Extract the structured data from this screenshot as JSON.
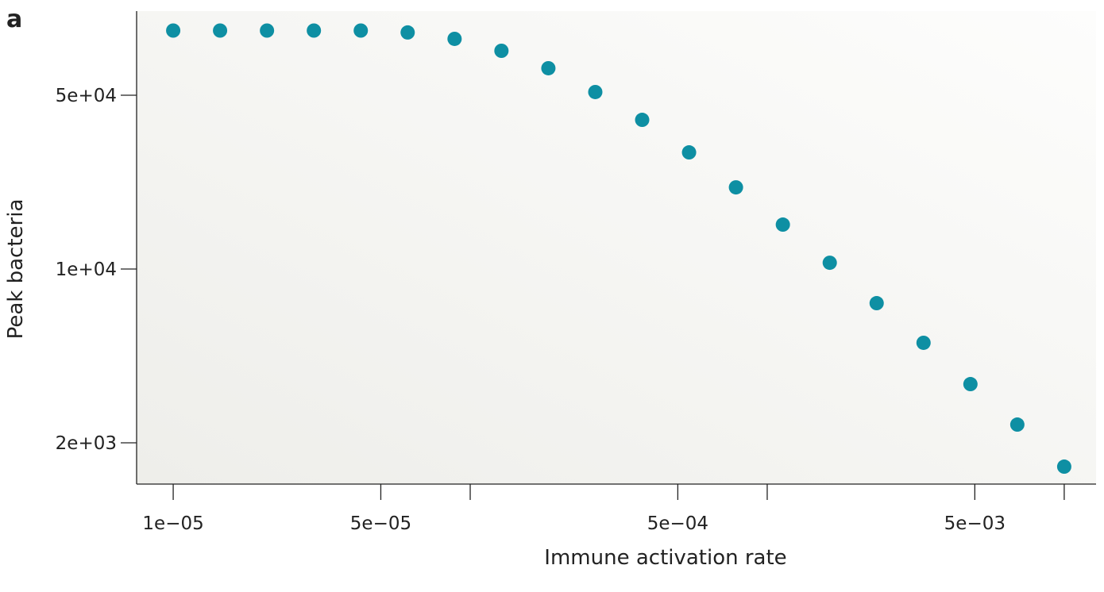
{
  "panel_label": "a",
  "chart_data": {
    "type": "scatter",
    "xlabel": "Immune activation rate",
    "ylabel": "Peak bacteria",
    "xscale": "log",
    "yscale": "log",
    "xlim": [
      7.53e-06,
      0.0128
    ],
    "ylim": [
      1365,
      108950
    ],
    "xticks": [
      {
        "value": 1e-05,
        "label": "1e−05"
      },
      {
        "value": 5e-05,
        "label": "5e−05"
      },
      {
        "value": 0.0001
      },
      {
        "value": 0.0005,
        "label": "5e−04"
      },
      {
        "value": 0.001
      },
      {
        "value": 0.005,
        "label": "5e−03"
      },
      {
        "value": 0.01
      }
    ],
    "yticks": [
      {
        "value": 2000,
        "label": "2e+03"
      },
      {
        "value": 10000,
        "label": "1e+04"
      },
      {
        "value": 50000,
        "label": "5e+04"
      }
    ],
    "color": "#0e8fa3",
    "x": [
      1e-05,
      1.438e-05,
      2.069e-05,
      2.976e-05,
      4.281e-05,
      6.158e-05,
      8.859e-05,
      0.0001274,
      0.0001833,
      0.0002637,
      0.0003793,
      0.0005456,
      0.0007848,
      0.001129,
      0.001624,
      0.002336,
      0.00336,
      0.004833,
      0.006952,
      0.01
    ],
    "values": [
      91000,
      91000,
      91000,
      91000,
      91000,
      89400,
      84250,
      75450,
      64200,
      51500,
      39800,
      29450,
      21300,
      15090,
      10600,
      7290,
      5050,
      3445,
      2368,
      1604
    ]
  }
}
